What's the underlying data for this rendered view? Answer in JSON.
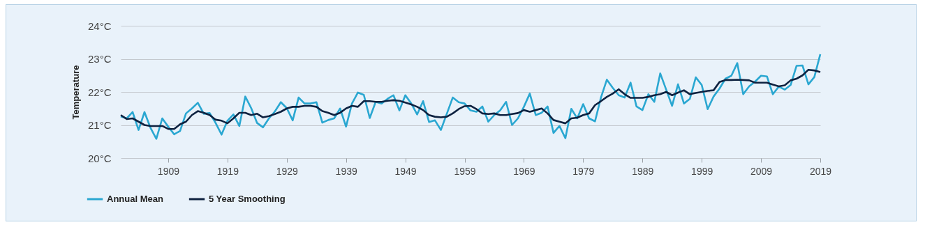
{
  "chart_data": {
    "type": "line",
    "ylabel": "Temperature",
    "x": [
      1901,
      1902,
      1903,
      1904,
      1905,
      1906,
      1907,
      1908,
      1909,
      1910,
      1911,
      1912,
      1913,
      1914,
      1915,
      1916,
      1917,
      1918,
      1919,
      1920,
      1921,
      1922,
      1923,
      1924,
      1925,
      1926,
      1927,
      1928,
      1929,
      1930,
      1931,
      1932,
      1933,
      1934,
      1935,
      1936,
      1937,
      1938,
      1939,
      1940,
      1941,
      1942,
      1943,
      1944,
      1945,
      1946,
      1947,
      1948,
      1949,
      1950,
      1951,
      1952,
      1953,
      1954,
      1955,
      1956,
      1957,
      1958,
      1959,
      1960,
      1961,
      1962,
      1963,
      1964,
      1965,
      1966,
      1967,
      1968,
      1969,
      1970,
      1971,
      1972,
      1973,
      1974,
      1975,
      1976,
      1977,
      1978,
      1979,
      1980,
      1981,
      1982,
      1983,
      1984,
      1985,
      1986,
      1987,
      1988,
      1989,
      1990,
      1991,
      1992,
      1993,
      1994,
      1995,
      1996,
      1997,
      1998,
      1999,
      2000,
      2001,
      2002,
      2003,
      2004,
      2005,
      2006,
      2007,
      2008,
      2009,
      2010,
      2011,
      2012,
      2013,
      2014,
      2015,
      2016,
      2017,
      2018,
      2019
    ],
    "series": [
      {
        "name": "Annual Mean",
        "color": "#2aa7d1",
        "values": [
          21.26,
          21.2,
          21.39,
          20.85,
          21.39,
          20.92,
          20.58,
          21.2,
          20.95,
          20.72,
          20.82,
          21.35,
          21.5,
          21.67,
          21.34,
          21.36,
          21.06,
          20.71,
          21.13,
          21.32,
          20.97,
          21.86,
          21.51,
          21.06,
          20.93,
          21.2,
          21.41,
          21.69,
          21.51,
          21.14,
          21.83,
          21.65,
          21.65,
          21.69,
          21.07,
          21.15,
          21.2,
          21.5,
          20.95,
          21.65,
          21.98,
          21.91,
          21.21,
          21.7,
          21.65,
          21.79,
          21.9,
          21.44,
          21.9,
          21.65,
          21.32,
          21.72,
          21.09,
          21.14,
          20.85,
          21.34,
          21.83,
          21.69,
          21.65,
          21.44,
          21.4,
          21.56,
          21.1,
          21.3,
          21.44,
          21.7,
          21.0,
          21.2,
          21.55,
          21.95,
          21.3,
          21.37,
          21.56,
          20.76,
          20.97,
          20.6,
          21.49,
          21.2,
          21.63,
          21.2,
          21.11,
          21.83,
          22.37,
          22.12,
          21.9,
          21.83,
          22.28,
          21.56,
          21.45,
          21.93,
          21.7,
          22.56,
          22.07,
          21.58,
          22.23,
          21.65,
          21.79,
          22.44,
          22.21,
          21.48,
          21.86,
          22.1,
          22.4,
          22.49,
          22.87,
          21.93,
          22.17,
          22.31,
          22.49,
          22.47,
          21.93,
          22.16,
          22.07,
          22.21,
          22.79,
          22.8,
          22.23,
          22.45,
          23.14
        ]
      },
      {
        "name": "5 Year Smoothing",
        "color": "#0e2240",
        "values": [
          21.3,
          21.18,
          21.2,
          21.1,
          21.0,
          20.97,
          20.97,
          20.97,
          20.88,
          20.88,
          21.02,
          21.1,
          21.3,
          21.42,
          21.37,
          21.3,
          21.16,
          21.13,
          21.05,
          21.2,
          21.37,
          21.37,
          21.3,
          21.34,
          21.23,
          21.27,
          21.33,
          21.4,
          21.5,
          21.55,
          21.55,
          21.58,
          21.58,
          21.55,
          21.42,
          21.37,
          21.3,
          21.37,
          21.5,
          21.58,
          21.55,
          21.72,
          21.72,
          21.7,
          21.7,
          21.73,
          21.75,
          21.73,
          21.68,
          21.62,
          21.55,
          21.45,
          21.3,
          21.25,
          21.23,
          21.25,
          21.35,
          21.48,
          21.57,
          21.58,
          21.48,
          21.35,
          21.33,
          21.35,
          21.3,
          21.3,
          21.33,
          21.36,
          21.45,
          21.4,
          21.45,
          21.5,
          21.35,
          21.15,
          21.1,
          21.05,
          21.2,
          21.22,
          21.3,
          21.35,
          21.6,
          21.72,
          21.85,
          21.95,
          22.08,
          21.93,
          21.82,
          21.82,
          21.82,
          21.85,
          21.9,
          21.93,
          22.0,
          21.9,
          21.98,
          22.05,
          21.93,
          21.97,
          22.0,
          22.03,
          22.05,
          22.3,
          22.36,
          22.36,
          22.37,
          22.36,
          22.35,
          22.28,
          22.28,
          22.28,
          22.22,
          22.17,
          22.2,
          22.35,
          22.4,
          22.5,
          22.67,
          22.65,
          22.6
        ]
      }
    ],
    "xlim": [
      1901,
      2019
    ],
    "xticks": [
      1909,
      1919,
      1929,
      1939,
      1949,
      1959,
      1969,
      1979,
      1989,
      1999,
      2009,
      2019
    ],
    "ylim": [
      20,
      24
    ],
    "yticks": [
      {
        "value": 20,
        "label": "20°C"
      },
      {
        "value": 21,
        "label": "21°C"
      },
      {
        "value": 22,
        "label": "22°C"
      },
      {
        "value": 23,
        "label": "23°C"
      },
      {
        "value": 24,
        "label": "24°C"
      }
    ],
    "grid": "y",
    "legend": "bottom left",
    "line_style": "solid",
    "marker": "none"
  }
}
